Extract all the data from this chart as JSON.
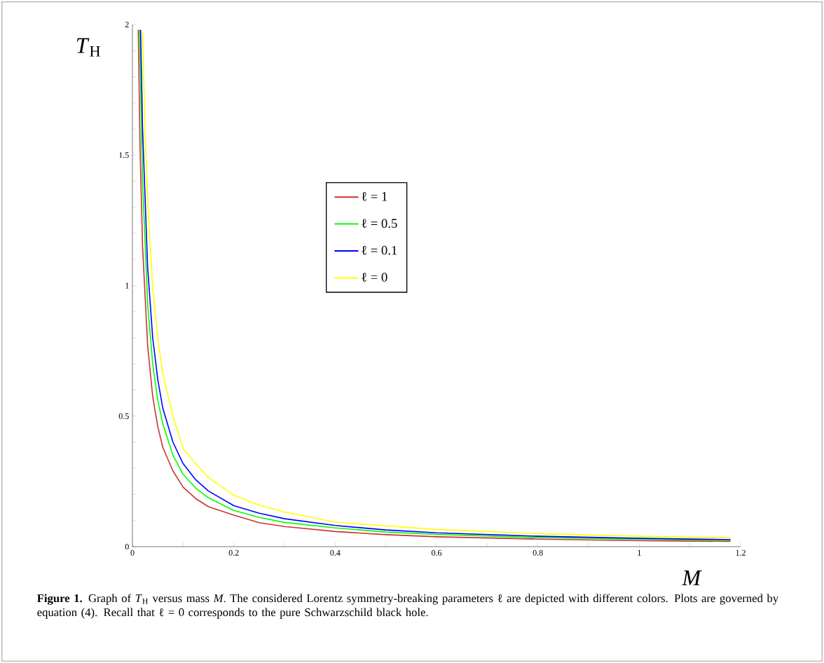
{
  "chart_data": {
    "type": "line",
    "xlabel": "*M*",
    "ylabel": "*T*$_{H}$",
    "xlim": [
      0,
      1.2
    ],
    "ylim": [
      0,
      2
    ],
    "xticks": [
      0,
      {
        "value": 0.1,
        "label": null
      },
      0.2,
      {
        "value": 0.3,
        "label": null
      },
      0.4,
      {
        "value": 0.5,
        "label": null
      },
      0.6,
      {
        "value": 0.7,
        "label": null
      },
      0.8,
      {
        "value": 0.9,
        "label": null
      },
      1,
      {
        "value": 1.1,
        "label": null
      },
      1.2
    ],
    "yticks": [
      0,
      {
        "value": 0.1,
        "label": null
      },
      {
        "value": 0.2,
        "label": null
      },
      {
        "value": 0.3,
        "label": null
      },
      {
        "value": 0.4,
        "label": null
      },
      0.5,
      {
        "value": 0.6,
        "label": null
      },
      {
        "value": 0.7,
        "label": null
      },
      {
        "value": 0.8,
        "label": null
      },
      {
        "value": 0.9,
        "label": null
      },
      1,
      {
        "value": 1.1,
        "label": null
      },
      {
        "value": 1.2,
        "label": null
      },
      {
        "value": 1.3,
        "label": null
      },
      {
        "value": 1.4,
        "label": null
      },
      1.5,
      {
        "value": 1.6,
        "label": null
      },
      {
        "value": 1.7,
        "label": null
      },
      {
        "value": 1.8,
        "label": null
      },
      {
        "value": 1.9,
        "label": null
      },
      2
    ],
    "legend": "center",
    "series": [
      {
        "name": "ℓ = 1",
        "color": "#cc3333",
        "x": [
          0.0115,
          0.015,
          0.02,
          0.03,
          0.04,
          0.05,
          0.06,
          0.08,
          0.1,
          0.125,
          0.15,
          0.2,
          0.25,
          0.3,
          0.4,
          0.5,
          0.6,
          0.8,
          1.0,
          1.18
        ],
        "values": [
          1.98,
          1.53,
          1.15,
          0.77,
          0.575,
          0.46,
          0.38,
          0.29,
          0.228,
          0.184,
          0.153,
          0.121,
          0.092,
          0.077,
          0.058,
          0.046,
          0.038,
          0.029,
          0.023,
          0.02
        ]
      },
      {
        "name": "ℓ = 0.5",
        "color": "#00ff00",
        "x": [
          0.014,
          0.02,
          0.03,
          0.04,
          0.05,
          0.06,
          0.08,
          0.1,
          0.125,
          0.15,
          0.2,
          0.25,
          0.3,
          0.4,
          0.5,
          0.6,
          0.8,
          1.0,
          1.18
        ],
        "values": [
          1.98,
          1.4,
          0.93,
          0.7,
          0.56,
          0.47,
          0.35,
          0.277,
          0.224,
          0.187,
          0.139,
          0.112,
          0.093,
          0.072,
          0.056,
          0.047,
          0.035,
          0.028,
          0.024
        ]
      },
      {
        "name": "ℓ = 0.1",
        "color": "#0000ff",
        "x": [
          0.016,
          0.02,
          0.03,
          0.04,
          0.05,
          0.06,
          0.08,
          0.1,
          0.125,
          0.15,
          0.2,
          0.25,
          0.3,
          0.4,
          0.5,
          0.6,
          0.8,
          1.0,
          1.18
        ],
        "values": [
          1.98,
          1.6,
          1.07,
          0.8,
          0.64,
          0.53,
          0.4,
          0.318,
          0.256,
          0.213,
          0.157,
          0.128,
          0.107,
          0.081,
          0.064,
          0.053,
          0.04,
          0.032,
          0.027
        ]
      },
      {
        "name": "ℓ = 0",
        "color": "#ffff00",
        "x": [
          0.02,
          0.025,
          0.03,
          0.04,
          0.05,
          0.06,
          0.08,
          0.1,
          0.125,
          0.15,
          0.2,
          0.25,
          0.3,
          0.4,
          0.5,
          0.6,
          0.8,
          1.0,
          1.18
        ],
        "values": [
          1.97,
          1.59,
          1.33,
          0.99,
          0.8,
          0.66,
          0.5,
          0.376,
          0.318,
          0.265,
          0.197,
          0.159,
          0.133,
          0.094,
          0.08,
          0.066,
          0.05,
          0.04,
          0.034
        ]
      }
    ],
    "annotations": [
      "**Figure 1.** Graph of *T*$_{H}$ versus mass *M*. The considered Lorentz symmetry-breaking parameters ℓ are depicted with different colors. Plots are governed by equation (4). Recall that ℓ = 0 corresponds to the pure Schwarzschild black hole."
    ]
  }
}
